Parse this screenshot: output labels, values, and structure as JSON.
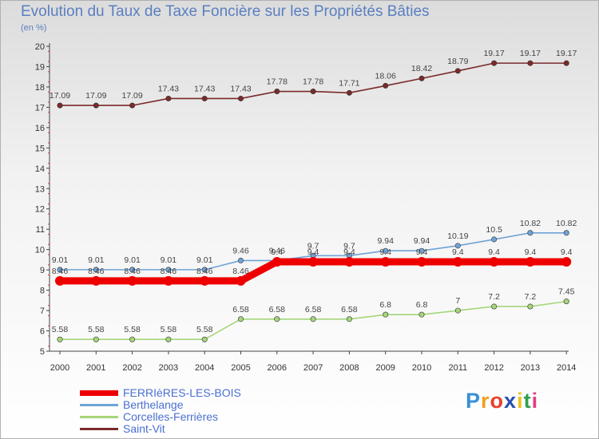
{
  "chart_data": {
    "type": "line",
    "title": "Evolution du Taux de Taxe Foncière sur les Propriétés Bâties",
    "ylabel": "(en %)",
    "xlabel": "",
    "x": [
      "2000",
      "2001",
      "2002",
      "2003",
      "2004",
      "2005",
      "2006",
      "2007",
      "2008",
      "2009",
      "2010",
      "2011",
      "2012",
      "2013",
      "2014"
    ],
    "ylim": [
      5,
      20
    ],
    "yticks": [
      "5",
      "6",
      "7",
      "8",
      "9",
      "10",
      "11",
      "12",
      "13",
      "14",
      "15",
      "16",
      "17",
      "18",
      "19",
      "20"
    ],
    "series": [
      {
        "name": "Saint-Vit",
        "color": "#7b2a2a",
        "values": [
          17.09,
          17.09,
          17.09,
          17.43,
          17.43,
          17.43,
          17.78,
          17.78,
          17.71,
          18.06,
          18.42,
          18.79,
          19.17,
          19.17,
          19.17
        ],
        "labels": [
          "17.09",
          "17.09",
          "17.09",
          "17.43",
          "17.43",
          "17.43",
          "17.78",
          "17.78",
          "17.71",
          "18.06",
          "18.42",
          "18.79",
          "19.17",
          "19.17",
          "19.17"
        ]
      },
      {
        "name": "Berthelange",
        "color": "#6fa3d6",
        "values": [
          9.01,
          9.01,
          9.01,
          9.01,
          9.01,
          9.46,
          9.46,
          9.7,
          9.7,
          9.94,
          9.94,
          10.19,
          10.5,
          10.82,
          10.82
        ],
        "labels": [
          "9.01",
          "9.01",
          "9.01",
          "9.01",
          "9.01",
          "9.46",
          "9.46",
          "9.7",
          "9.7",
          "9.94",
          "9.94",
          "10.19",
          "10.5",
          "10.82",
          "10.82"
        ]
      },
      {
        "name": "Corcelles-Ferrières",
        "color": "#a6d67a",
        "values": [
          5.58,
          5.58,
          5.58,
          5.58,
          5.58,
          6.58,
          6.58,
          6.58,
          6.58,
          6.8,
          6.8,
          7,
          7.2,
          7.2,
          7.45
        ],
        "labels": [
          "5.58",
          "5.58",
          "5.58",
          "5.58",
          "5.58",
          "6.58",
          "6.58",
          "6.58",
          "6.58",
          "6.8",
          "6.8",
          "7",
          "7.2",
          "7.2",
          "7.45"
        ]
      },
      {
        "name": "FERRIèRES-LES-BOIS",
        "color": "#ee0000",
        "values": [
          8.46,
          8.46,
          8.46,
          8.46,
          8.46,
          8.46,
          9.4,
          9.4,
          9.4,
          9.4,
          9.4,
          9.4,
          9.4,
          9.4,
          9.4
        ],
        "labels": [
          "8.46",
          "8.46",
          "8.46",
          "8.46",
          "8.46",
          "8.46",
          "9.4",
          "9.4",
          "9.4",
          "9.4",
          "9.4",
          "9.4",
          "9.4",
          "9.4",
          "9.4"
        ]
      }
    ],
    "legend": [
      "FERRIèRES-LES-BOIS",
      "Berthelange",
      "Corcelles-Ferrières",
      "Saint-Vit"
    ],
    "legend_position": "bottom-left",
    "grid": false
  },
  "header": {
    "title": "Evolution du Taux de Taxe Foncière sur les Propriétés Bâties",
    "unit": "(en %)"
  },
  "legend_items": [
    {
      "label": "FERRIèRES-LES-BOIS",
      "color": "#ee0000",
      "thick": true
    },
    {
      "label": "Berthelange",
      "color": "#6fa3d6",
      "thick": false
    },
    {
      "label": "Corcelles-Ferrières",
      "color": "#a6d67a",
      "thick": false
    },
    {
      "label": "Saint-Vit",
      "color": "#7b2a2a",
      "thick": false
    }
  ],
  "brand": {
    "letters": [
      "P",
      "r",
      "o",
      "x",
      "i",
      "t",
      "i"
    ],
    "colors": [
      "#3a8fd8",
      "#f0a020",
      "#e8402a",
      "#2a4fb0",
      "#f0c020",
      "#30a050",
      "#e04080"
    ]
  }
}
